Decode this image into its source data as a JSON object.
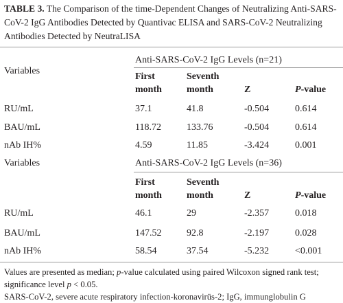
{
  "header": {
    "label": "TABLE 3.",
    "title": "The Comparison of the time-Dependent Changes of Neutralizing Anti-SARS-CoV-2 IgG Antibodies Detected by Quantivac ELISA and SARS-CoV-2 Neutralizing Antibodies Detected by NeutraLISA"
  },
  "sections": [
    {
      "variables": "Variables",
      "group": "Anti-SARS-CoV-2 IgG Levels (n=21)",
      "columns": [
        "First month",
        "Seventh month",
        "Z",
        [
          "P",
          "-value"
        ]
      ],
      "rows": [
        [
          "RU/mL",
          "37.1",
          "41.8",
          "-0.504",
          "0.614"
        ],
        [
          "BAU/mL",
          "118.72",
          "133.76",
          "-0.504",
          "0.614"
        ],
        [
          "nAb IH%",
          "4.59",
          "11.85",
          "-3.424",
          "0.001"
        ]
      ]
    },
    {
      "variables": "Variables",
      "group": "Anti-SARS-CoV-2 IgG Levels (n=36)",
      "columns": [
        "First month",
        "Seventh month",
        "Z",
        [
          "P",
          "-value"
        ]
      ],
      "rows": [
        [
          "RU/mL",
          "46.1",
          "29",
          "-2.357",
          "0.018"
        ],
        [
          "BAU/mL",
          "147.52",
          "92.8",
          "-2.197",
          "0.028"
        ],
        [
          "nAb IH%",
          "58.54",
          "37.54",
          "-5.232",
          "<0.001"
        ]
      ]
    }
  ],
  "footnotes": [
    [
      "Values are presented as median; ",
      "p",
      "-value calculated using paired Wilcoxon signed rank test; significance level ",
      "p",
      " < 0.05."
    ],
    [
      "SARS-CoV-2, severe acute respiratory infection-koronavirüs-2; IgG, immunglobulin G"
    ]
  ]
}
